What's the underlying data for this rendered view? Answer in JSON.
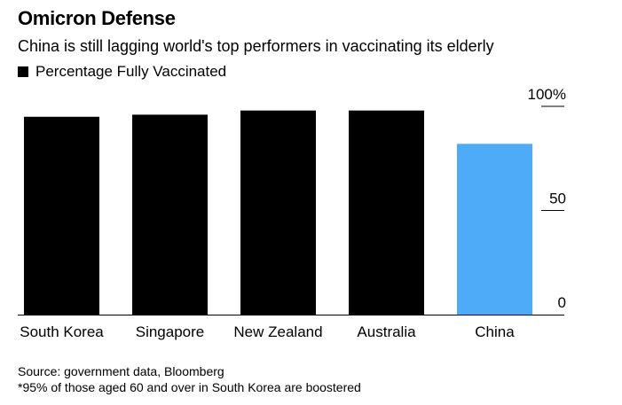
{
  "title": "Omicron Defense",
  "subtitle": "China is still lagging world's top performers in vaccinating its elderly",
  "legend_label": "Percentage Fully Vaccinated",
  "source": "Source: government data, Bloomberg",
  "footnote": "*95% of those aged 60 and over in South Korea are boostered",
  "chart_data": {
    "type": "bar",
    "categories": [
      "South Korea",
      "Singapore",
      "New Zealand",
      "Australia",
      "China"
    ],
    "series": [
      {
        "name": "Percentage Fully Vaccinated",
        "values": [
          95,
          96,
          98,
          98,
          82
        ]
      }
    ],
    "bar_colors": [
      "#000000",
      "#000000",
      "#000000",
      "#000000",
      "#4dabf7"
    ],
    "ylim": [
      0,
      100
    ],
    "yticks": [
      0,
      50,
      100
    ],
    "ytick_labels": [
      "0",
      "50",
      "100%"
    ],
    "y_axis_side": "right",
    "grid": false
  }
}
